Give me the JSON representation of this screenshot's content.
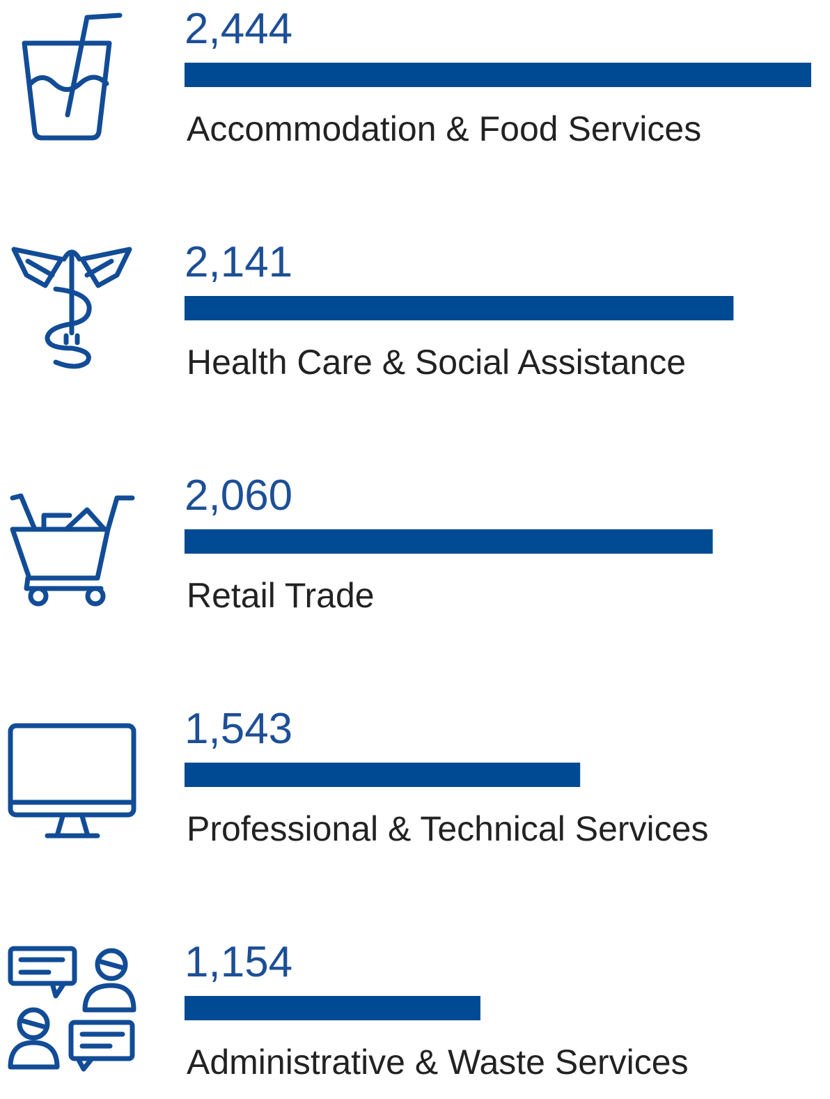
{
  "chart_data": {
    "type": "bar",
    "orientation": "horizontal",
    "categories": [
      "Accommodation & Food Services",
      "Health Care & Social Assistance",
      "Retail Trade",
      "Professional & Technical Services",
      "Administrative & Waste Services"
    ],
    "values": [
      2444,
      2141,
      2060,
      1543,
      1154
    ],
    "value_labels": [
      "2,444",
      "2,141",
      "2,060",
      "1,543",
      "1,154"
    ],
    "color": "#004a93"
  }
}
